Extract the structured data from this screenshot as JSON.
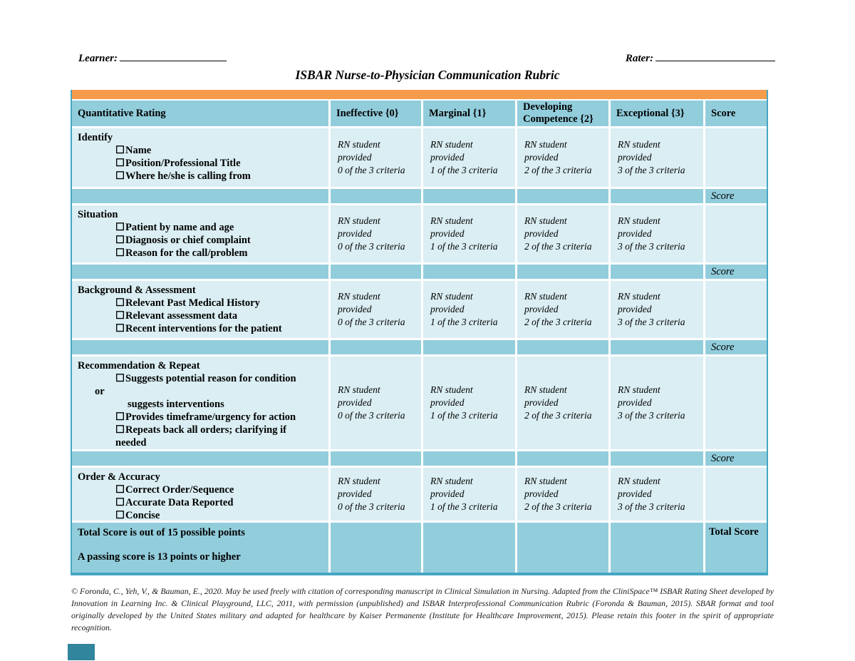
{
  "header": {
    "learner_label": "Learner:",
    "rater_label": "Rater:",
    "title": "ISBAR Nurse-to-Physician Communication Rubric"
  },
  "table": {
    "columns": [
      "Quantitative Rating",
      "Ineffective {0}",
      "Marginal {1}",
      "Developing Competence {2}",
      "Exceptional {3}",
      "Score"
    ],
    "score_row_label": "Score",
    "glyphs": {
      "checkbox": "☐"
    },
    "rows": [
      {
        "title": "Identify",
        "lines": [
          "Name",
          "Position/Professional Title",
          "Where he/she is calling from"
        ],
        "ratings": [
          "RN student\nprovided\n0 of the 3 criteria",
          "RN student\nprovided\n1 of the 3 criteria",
          "RN student\nprovided\n2 of the 3 criteria",
          "RN student\nprovided\n3 of the 3 criteria"
        ]
      },
      {
        "title": "Situation",
        "lines": [
          "Patient by name and age",
          "Diagnosis or chief complaint",
          "Reason for the call/problem"
        ],
        "ratings": [
          "RN student\nprovided\n0 of the 3 criteria",
          "RN student\nprovided\n1 of the 3 criteria",
          "RN student\nprovided\n2 of the 3 criteria",
          "RN student\nprovided\n3 of the 3 criteria"
        ]
      },
      {
        "title": "Background & Assessment",
        "lines": [
          "Relevant Past Medical History",
          "Relevant assessment data",
          "Recent interventions for the patient"
        ],
        "ratings": [
          "RN student\nprovided\n0 of the 3 criteria",
          "RN student\nprovided\n1 of the 3 criteria",
          "RN student\nprovided\n2 of the 3 criteria",
          "RN student\nprovided\n3 of the 3 criteria"
        ]
      },
      {
        "title": "Recommendation & Repeat",
        "lines": [
          "Suggests potential reason for condition",
          "or",
          "suggests interventions",
          "Provides timeframe/urgency for action",
          "Repeats back all orders; clarifying if",
          "needed"
        ],
        "ratings": [
          "RN student\nprovided\n0 of the 3 criteria",
          "RN student\nprovided\n1 of the 3 criteria",
          "RN student\nprovided\n2 of the 3 criteria",
          "RN student\nprovided\n3 of the 3 criteria"
        ]
      },
      {
        "title": "Order & Accuracy",
        "lines": [
          "Correct Order/Sequence",
          "Accurate Data Reported",
          "Concise"
        ],
        "ratings": [
          "RN student\nprovided\n0 of the 3 criteria",
          "RN student\nprovided\n1 of the 3 criteria",
          "RN student\nprovided\n2 of the 3 criteria",
          "RN student\nprovided\n3 of the 3 criteria"
        ]
      }
    ],
    "total": {
      "line1": "Total Score is out of 15 possible points",
      "line2": "A passing score is 13 points or higher",
      "label": "Total Score"
    }
  },
  "footer": "© Foronda, C., Yeh, V., & Bauman, E., 2020. May be used freely with citation of corresponding manuscript in Clinical Simulation in Nursing. Adapted from the CliniSpace™ ISBAR Rating Sheet developed by Innovation in Learning Inc. & Clinical Playground, LLC, 2011, with permission (unpublished) and ISBAR Interprofessional Communication Rubric (Foronda & Bauman, 2015). SBAR format and tool originally developed by the United States military and adapted for healthcare by Kaiser Permanente (Institute for Healthcare Improvement, 2015). Please retain this footer in the spirit of appropriate recognition.",
  "colors": {
    "accent_orange": "#F59B4C",
    "table_teal": "#92CDDC",
    "cell_light": "#DAEEF3",
    "table_border": "#45A6C3",
    "corner_mark": "#31859C"
  }
}
